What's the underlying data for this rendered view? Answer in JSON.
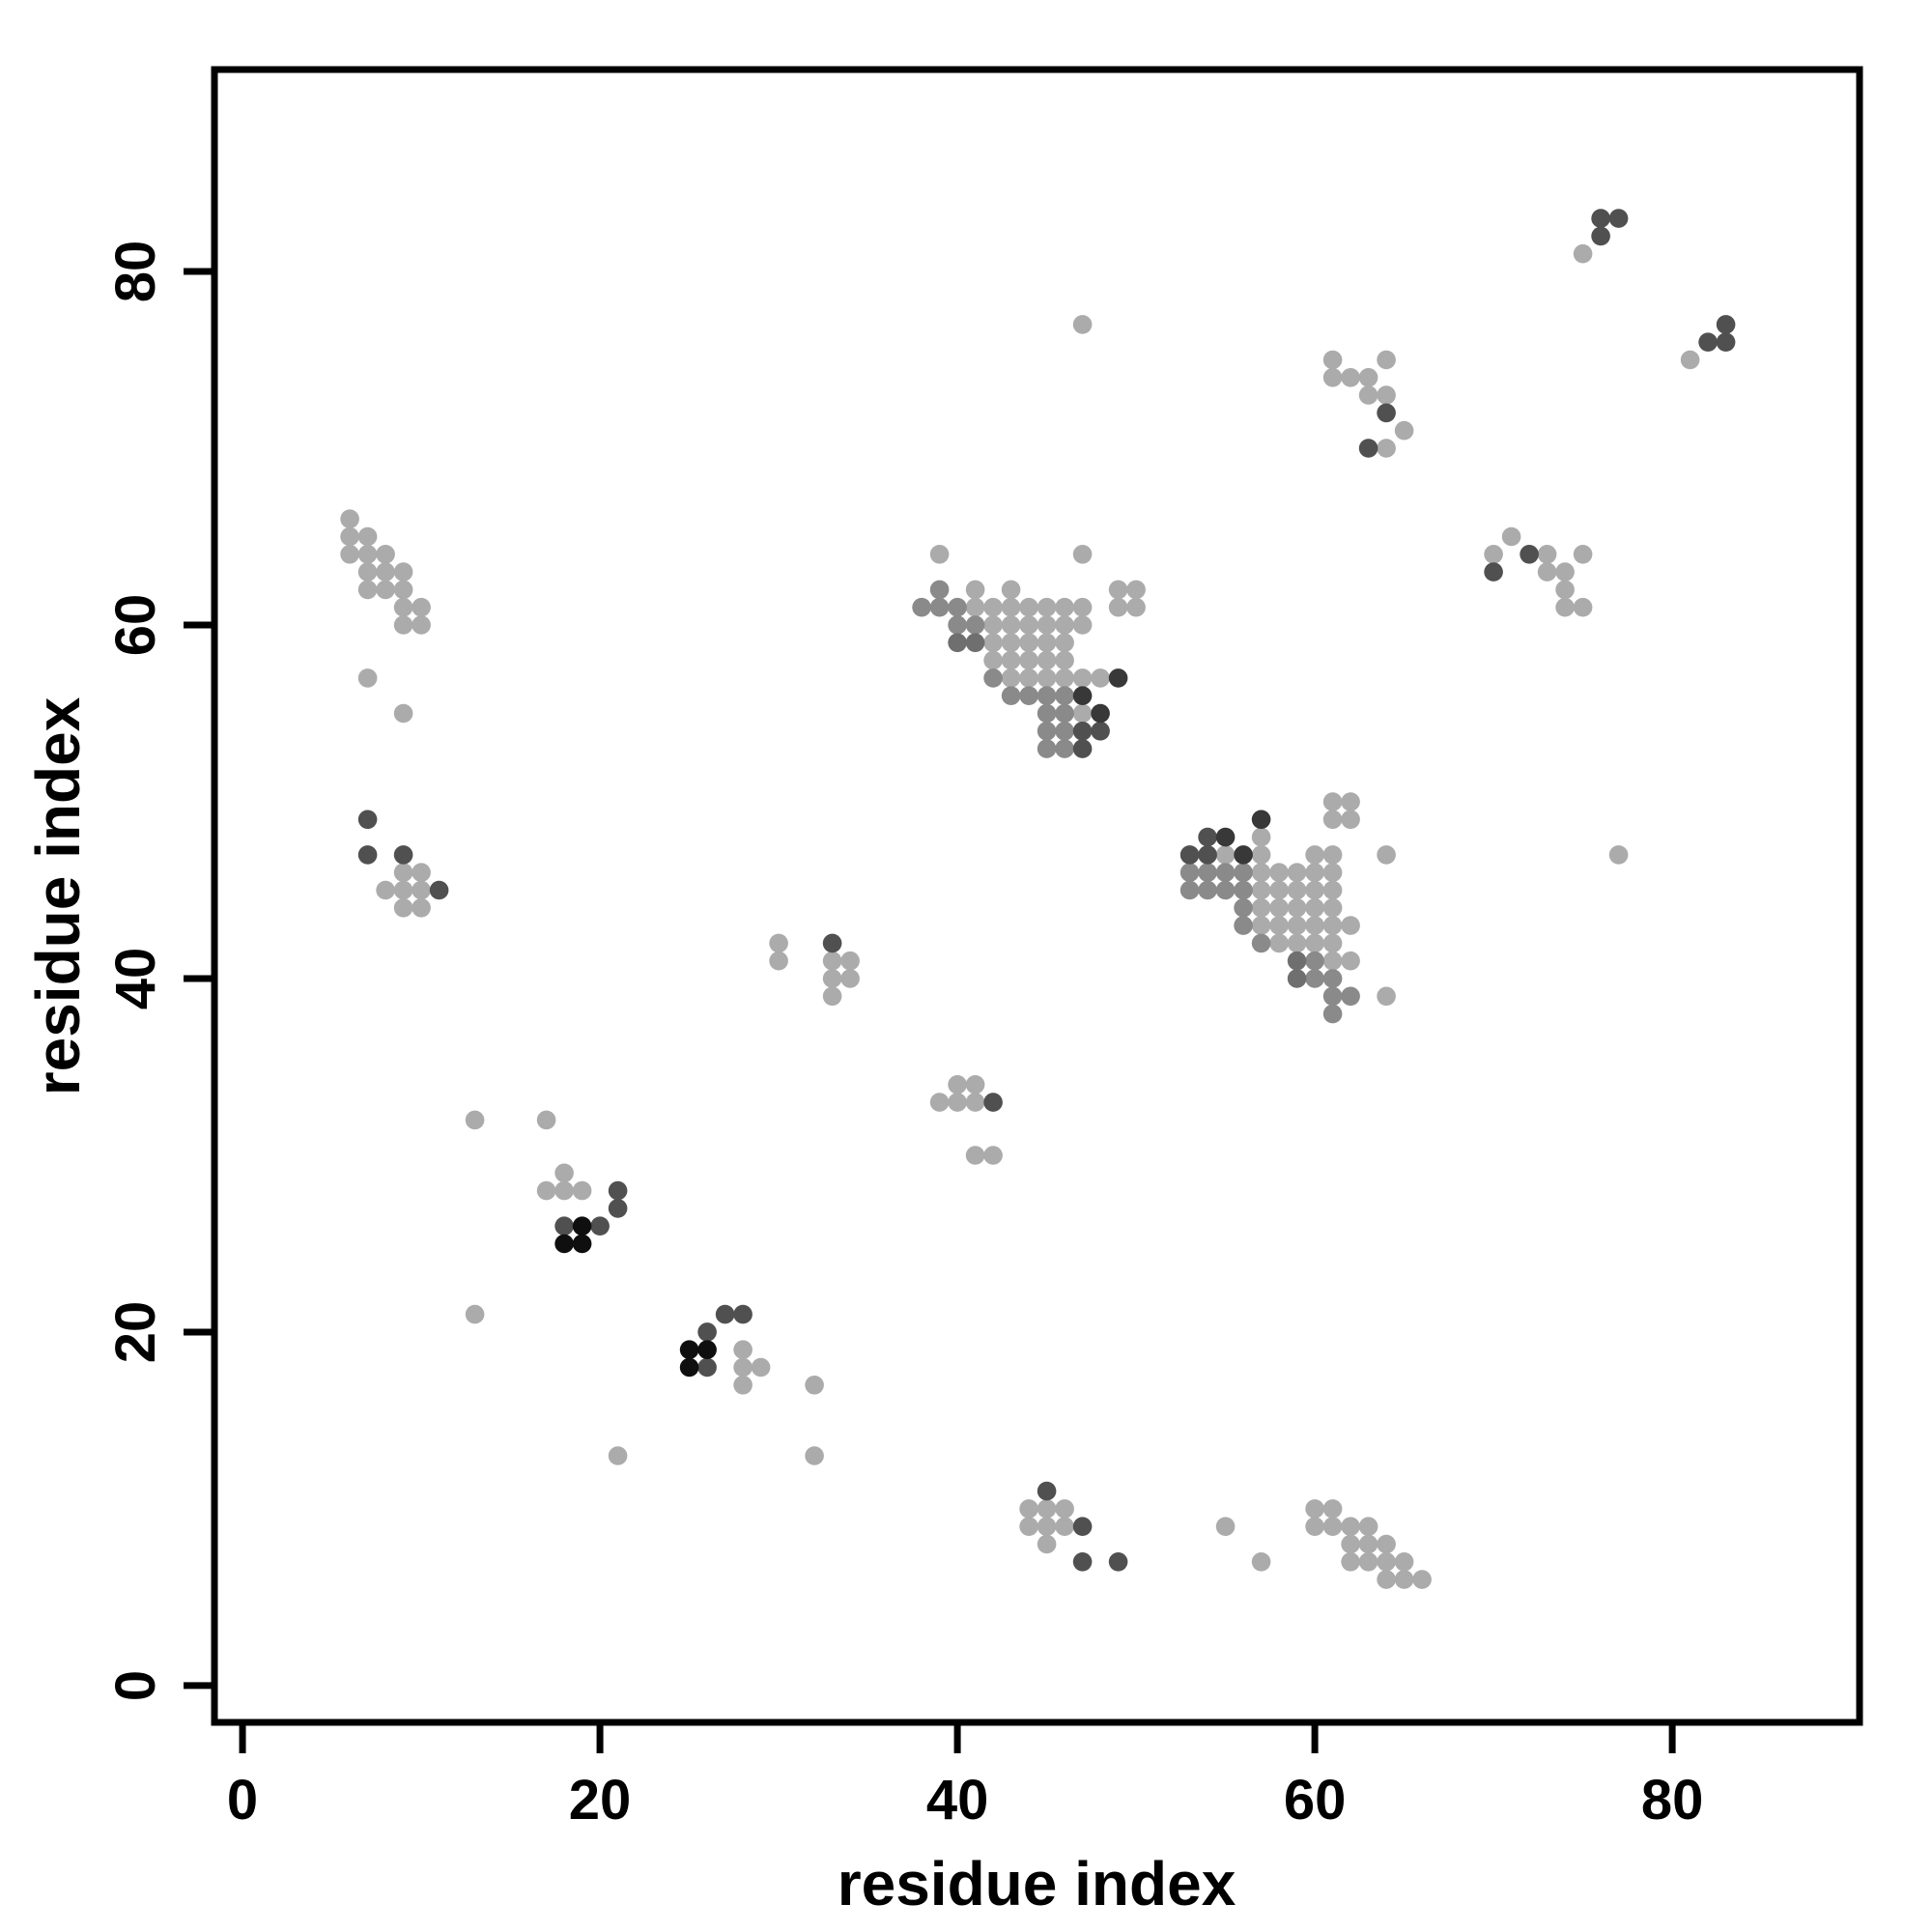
{
  "chart_data": {
    "type": "scatter",
    "title": "",
    "xlabel": "residue index",
    "ylabel": "residue index",
    "x_ticks": [
      0,
      20,
      40,
      60,
      80
    ],
    "y_ticks": [
      0,
      20,
      40,
      60,
      80
    ],
    "xlim": [
      -1.57,
      90.48
    ],
    "ylim": [
      -2.08,
      91.42
    ],
    "grid": false,
    "legend_position": "none",
    "marker": "filled-circle",
    "shade_palette": {
      "L": "#ababab",
      "M": "#8a8a8a",
      "MD": "#6f6f6f",
      "D": "#505050",
      "VD": "#383838",
      "B": "#0f0f0f"
    },
    "shade_order": [
      "L",
      "M",
      "MD",
      "D",
      "VD",
      "B"
    ],
    "points": [
      [
        6,
        66,
        "L"
      ],
      [
        6,
        65,
        "L"
      ],
      [
        7,
        65,
        "L"
      ],
      [
        6,
        64,
        "L"
      ],
      [
        7,
        64,
        "L"
      ],
      [
        8,
        64,
        "L"
      ],
      [
        7,
        63,
        "L"
      ],
      [
        8,
        63,
        "L"
      ],
      [
        9,
        63,
        "L"
      ],
      [
        7,
        62,
        "L"
      ],
      [
        8,
        62,
        "L"
      ],
      [
        9,
        62,
        "L"
      ],
      [
        9,
        61,
        "L"
      ],
      [
        10,
        61,
        "L"
      ],
      [
        9,
        60,
        "L"
      ],
      [
        10,
        60,
        "L"
      ],
      [
        7,
        57,
        "L"
      ],
      [
        9,
        55,
        "L"
      ],
      [
        66,
        6,
        "L"
      ],
      [
        65,
        6,
        "L"
      ],
      [
        65,
        7,
        "L"
      ],
      [
        64,
        6,
        "L"
      ],
      [
        64,
        7,
        "L"
      ],
      [
        64,
        8,
        "L"
      ],
      [
        63,
        7,
        "L"
      ],
      [
        63,
        8,
        "L"
      ],
      [
        63,
        9,
        "L"
      ],
      [
        62,
        7,
        "L"
      ],
      [
        62,
        8,
        "L"
      ],
      [
        62,
        9,
        "L"
      ],
      [
        61,
        9,
        "L"
      ],
      [
        61,
        10,
        "L"
      ],
      [
        60,
        9,
        "L"
      ],
      [
        60,
        10,
        "L"
      ],
      [
        57,
        7,
        "L"
      ],
      [
        55,
        9,
        "L"
      ],
      [
        7,
        49,
        "D"
      ],
      [
        7,
        47,
        "D"
      ],
      [
        9,
        47,
        "D"
      ],
      [
        11,
        45,
        "D"
      ],
      [
        9,
        46,
        "L"
      ],
      [
        10,
        46,
        "L"
      ],
      [
        8,
        45,
        "L"
      ],
      [
        9,
        45,
        "L"
      ],
      [
        10,
        45,
        "L"
      ],
      [
        9,
        44,
        "L"
      ],
      [
        10,
        44,
        "L"
      ],
      [
        49,
        7,
        "D"
      ],
      [
        47,
        7,
        "D"
      ],
      [
        47,
        9,
        "D"
      ],
      [
        45,
        11,
        "D"
      ],
      [
        46,
        9,
        "L"
      ],
      [
        46,
        10,
        "L"
      ],
      [
        45,
        8,
        "L"
      ],
      [
        45,
        9,
        "L"
      ],
      [
        45,
        10,
        "L"
      ],
      [
        44,
        9,
        "L"
      ],
      [
        44,
        10,
        "L"
      ],
      [
        39,
        64,
        "L"
      ],
      [
        47,
        64,
        "L"
      ],
      [
        39,
        62,
        "M"
      ],
      [
        41,
        62,
        "L"
      ],
      [
        43,
        62,
        "L"
      ],
      [
        49,
        62,
        "L"
      ],
      [
        50,
        62,
        "L"
      ],
      [
        38,
        61,
        "M"
      ],
      [
        39,
        61,
        "M"
      ],
      [
        40,
        61,
        "M"
      ],
      [
        41,
        61,
        "L"
      ],
      [
        42,
        61,
        "L"
      ],
      [
        43,
        61,
        "L"
      ],
      [
        44,
        61,
        "L"
      ],
      [
        45,
        61,
        "L"
      ],
      [
        46,
        61,
        "L"
      ],
      [
        47,
        61,
        "L"
      ],
      [
        49,
        61,
        "L"
      ],
      [
        50,
        61,
        "L"
      ],
      [
        40,
        60,
        "M"
      ],
      [
        41,
        60,
        "M"
      ],
      [
        42,
        60,
        "L"
      ],
      [
        43,
        60,
        "L"
      ],
      [
        44,
        60,
        "L"
      ],
      [
        45,
        60,
        "L"
      ],
      [
        46,
        60,
        "L"
      ],
      [
        47,
        60,
        "L"
      ],
      [
        40,
        59,
        "MD"
      ],
      [
        41,
        59,
        "MD"
      ],
      [
        42,
        59,
        "L"
      ],
      [
        43,
        59,
        "L"
      ],
      [
        44,
        59,
        "L"
      ],
      [
        45,
        59,
        "L"
      ],
      [
        46,
        59,
        "L"
      ],
      [
        42,
        58,
        "L"
      ],
      [
        43,
        58,
        "L"
      ],
      [
        44,
        58,
        "L"
      ],
      [
        45,
        58,
        "L"
      ],
      [
        46,
        58,
        "L"
      ],
      [
        42,
        57,
        "M"
      ],
      [
        43,
        57,
        "L"
      ],
      [
        44,
        57,
        "L"
      ],
      [
        45,
        57,
        "L"
      ],
      [
        46,
        57,
        "L"
      ],
      [
        47,
        57,
        "L"
      ],
      [
        48,
        57,
        "L"
      ],
      [
        49,
        57,
        "VD"
      ],
      [
        43,
        56,
        "M"
      ],
      [
        44,
        56,
        "M"
      ],
      [
        45,
        56,
        "M"
      ],
      [
        46,
        56,
        "M"
      ],
      [
        47,
        56,
        "VD"
      ],
      [
        45,
        55,
        "M"
      ],
      [
        46,
        55,
        "M"
      ],
      [
        47,
        55,
        "L"
      ],
      [
        48,
        55,
        "VD"
      ],
      [
        45,
        54,
        "M"
      ],
      [
        46,
        54,
        "M"
      ],
      [
        47,
        54,
        "D"
      ],
      [
        48,
        54,
        "D"
      ],
      [
        45,
        53,
        "M"
      ],
      [
        46,
        53,
        "M"
      ],
      [
        47,
        53,
        "D"
      ],
      [
        64,
        39,
        "L"
      ],
      [
        64,
        47,
        "L"
      ],
      [
        62,
        39,
        "M"
      ],
      [
        62,
        41,
        "L"
      ],
      [
        62,
        43,
        "L"
      ],
      [
        62,
        49,
        "L"
      ],
      [
        62,
        50,
        "L"
      ],
      [
        61,
        38,
        "M"
      ],
      [
        61,
        39,
        "M"
      ],
      [
        61,
        40,
        "M"
      ],
      [
        61,
        41,
        "L"
      ],
      [
        61,
        42,
        "L"
      ],
      [
        61,
        43,
        "L"
      ],
      [
        61,
        44,
        "L"
      ],
      [
        61,
        45,
        "L"
      ],
      [
        61,
        46,
        "L"
      ],
      [
        61,
        47,
        "L"
      ],
      [
        61,
        49,
        "L"
      ],
      [
        61,
        50,
        "L"
      ],
      [
        60,
        40,
        "M"
      ],
      [
        60,
        41,
        "M"
      ],
      [
        60,
        42,
        "L"
      ],
      [
        60,
        43,
        "L"
      ],
      [
        60,
        44,
        "L"
      ],
      [
        60,
        45,
        "L"
      ],
      [
        60,
        46,
        "L"
      ],
      [
        60,
        47,
        "L"
      ],
      [
        59,
        40,
        "MD"
      ],
      [
        59,
        41,
        "MD"
      ],
      [
        59,
        42,
        "L"
      ],
      [
        59,
        43,
        "L"
      ],
      [
        59,
        44,
        "L"
      ],
      [
        59,
        45,
        "L"
      ],
      [
        59,
        46,
        "L"
      ],
      [
        58,
        42,
        "L"
      ],
      [
        58,
        43,
        "L"
      ],
      [
        58,
        44,
        "L"
      ],
      [
        58,
        45,
        "L"
      ],
      [
        58,
        46,
        "L"
      ],
      [
        57,
        42,
        "M"
      ],
      [
        57,
        43,
        "L"
      ],
      [
        57,
        44,
        "L"
      ],
      [
        57,
        45,
        "L"
      ],
      [
        57,
        46,
        "L"
      ],
      [
        57,
        47,
        "L"
      ],
      [
        57,
        48,
        "L"
      ],
      [
        57,
        49,
        "VD"
      ],
      [
        56,
        43,
        "M"
      ],
      [
        56,
        44,
        "M"
      ],
      [
        56,
        45,
        "M"
      ],
      [
        56,
        46,
        "M"
      ],
      [
        56,
        47,
        "VD"
      ],
      [
        55,
        45,
        "M"
      ],
      [
        55,
        46,
        "M"
      ],
      [
        55,
        47,
        "L"
      ],
      [
        55,
        48,
        "VD"
      ],
      [
        54,
        45,
        "M"
      ],
      [
        54,
        46,
        "M"
      ],
      [
        54,
        47,
        "D"
      ],
      [
        54,
        48,
        "D"
      ],
      [
        53,
        45,
        "M"
      ],
      [
        53,
        46,
        "M"
      ],
      [
        53,
        47,
        "D"
      ],
      [
        30,
        42,
        "L"
      ],
      [
        30,
        41,
        "L"
      ],
      [
        33,
        42,
        "D"
      ],
      [
        33,
        41,
        "L"
      ],
      [
        34,
        41,
        "L"
      ],
      [
        33,
        40,
        "L"
      ],
      [
        34,
        40,
        "L"
      ],
      [
        33,
        39,
        "L"
      ],
      [
        42,
        30,
        "L"
      ],
      [
        41,
        30,
        "L"
      ],
      [
        42,
        33,
        "D"
      ],
      [
        41,
        33,
        "L"
      ],
      [
        41,
        34,
        "L"
      ],
      [
        40,
        33,
        "L"
      ],
      [
        40,
        34,
        "L"
      ],
      [
        39,
        33,
        "L"
      ],
      [
        13,
        32,
        "L"
      ],
      [
        17,
        32,
        "L"
      ],
      [
        13,
        21,
        "L"
      ],
      [
        18,
        29,
        "L"
      ],
      [
        17,
        28,
        "L"
      ],
      [
        18,
        28,
        "L"
      ],
      [
        19,
        28,
        "L"
      ],
      [
        21,
        28,
        "D"
      ],
      [
        21,
        27,
        "D"
      ],
      [
        18,
        26,
        "D"
      ],
      [
        19,
        26,
        "B"
      ],
      [
        20,
        26,
        "D"
      ],
      [
        18,
        25,
        "B"
      ],
      [
        19,
        25,
        "B"
      ],
      [
        32,
        13,
        "L"
      ],
      [
        32,
        17,
        "L"
      ],
      [
        21,
        13,
        "L"
      ],
      [
        29,
        18,
        "L"
      ],
      [
        28,
        17,
        "L"
      ],
      [
        28,
        18,
        "L"
      ],
      [
        28,
        19,
        "L"
      ],
      [
        28,
        21,
        "D"
      ],
      [
        27,
        21,
        "D"
      ],
      [
        26,
        18,
        "D"
      ],
      [
        26,
        19,
        "B"
      ],
      [
        26,
        20,
        "D"
      ],
      [
        25,
        18,
        "B"
      ],
      [
        25,
        19,
        "B"
      ],
      [
        76,
        83,
        "D"
      ],
      [
        77,
        83,
        "D"
      ],
      [
        76,
        82,
        "D"
      ],
      [
        75,
        81,
        "L"
      ],
      [
        83,
        76,
        "D"
      ],
      [
        83,
        77,
        "D"
      ],
      [
        82,
        76,
        "D"
      ],
      [
        81,
        75,
        "L"
      ],
      [
        61,
        75,
        "L"
      ],
      [
        64,
        75,
        "L"
      ],
      [
        61,
        74,
        "L"
      ],
      [
        62,
        74,
        "L"
      ],
      [
        63,
        74,
        "L"
      ],
      [
        63,
        73,
        "L"
      ],
      [
        64,
        73,
        "L"
      ],
      [
        64,
        72,
        "D"
      ],
      [
        65,
        71,
        "L"
      ],
      [
        63,
        70,
        "D"
      ],
      [
        64,
        70,
        "L"
      ],
      [
        75,
        61,
        "L"
      ],
      [
        75,
        64,
        "L"
      ],
      [
        74,
        61,
        "L"
      ],
      [
        74,
        62,
        "L"
      ],
      [
        74,
        63,
        "L"
      ],
      [
        73,
        63,
        "L"
      ],
      [
        73,
        64,
        "L"
      ],
      [
        72,
        64,
        "D"
      ],
      [
        71,
        65,
        "L"
      ],
      [
        70,
        63,
        "D"
      ],
      [
        70,
        64,
        "L"
      ],
      [
        47,
        77,
        "L"
      ],
      [
        77,
        47,
        "L"
      ]
    ]
  }
}
